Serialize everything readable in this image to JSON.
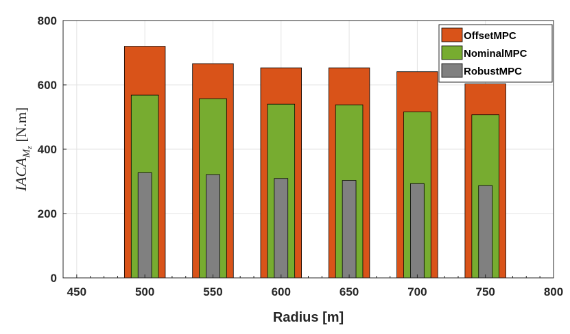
{
  "chart_data": {
    "type": "bar",
    "xlabel": "Radius [m]",
    "ylabel": {
      "main": "IACA",
      "subscript": "M",
      "subsub": "z",
      "unit": "[N.m]"
    },
    "xlim": [
      440,
      800
    ],
    "ylim": [
      0,
      800
    ],
    "xticks": [
      450,
      500,
      550,
      600,
      650,
      700,
      750,
      800
    ],
    "yticks": [
      0,
      200,
      400,
      600,
      800
    ],
    "grid": true,
    "legend_position": "top-right",
    "categories": [
      500,
      550,
      600,
      650,
      700,
      750
    ],
    "series": [
      {
        "name": "OffsetMPC",
        "color": "#D95319",
        "width": 30,
        "values": [
          720,
          666,
          653,
          653,
          641,
          603
        ]
      },
      {
        "name": "NominalMPC",
        "color": "#77AC30",
        "width": 20,
        "values": [
          568,
          557,
          540,
          538,
          516,
          507
        ]
      },
      {
        "name": "RobustMPC",
        "color": "#808080",
        "width": 10,
        "values": [
          327,
          321,
          309,
          303,
          293,
          287
        ]
      }
    ]
  }
}
